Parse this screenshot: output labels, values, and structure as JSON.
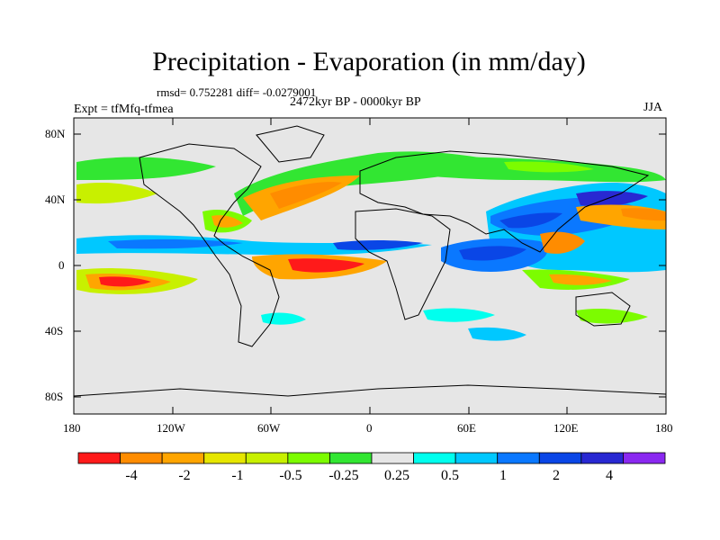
{
  "title": "Precipitation - Evaporation (in mm/day)",
  "stats": "rmsd= 0.752281 diff= -0.0279001",
  "period": "2472kyr BP - 0000kyr BP",
  "experiment": "Expt = tfMfq-tfmea",
  "season": "JJA",
  "y_ticks": [
    "80N",
    "40N",
    "0",
    "40S",
    "80S"
  ],
  "x_ticks": [
    "180",
    "120W",
    "60W",
    "0",
    "60E",
    "120E",
    "180"
  ],
  "colorbar": {
    "colors": [
      "#ff1a1a",
      "#ff8c00",
      "#ffa500",
      "#e6e600",
      "#c8f000",
      "#7cfc00",
      "#32e632",
      "#e6e6e6",
      "#00ffee",
      "#00c8ff",
      "#0a78ff",
      "#0a46e6",
      "#2828d2",
      "#8a28f0"
    ],
    "labels": [
      "-4",
      "-2",
      "-1",
      "-0.5",
      "-0.25",
      "0.25",
      "0.5",
      "1",
      "2",
      "4"
    ]
  }
}
